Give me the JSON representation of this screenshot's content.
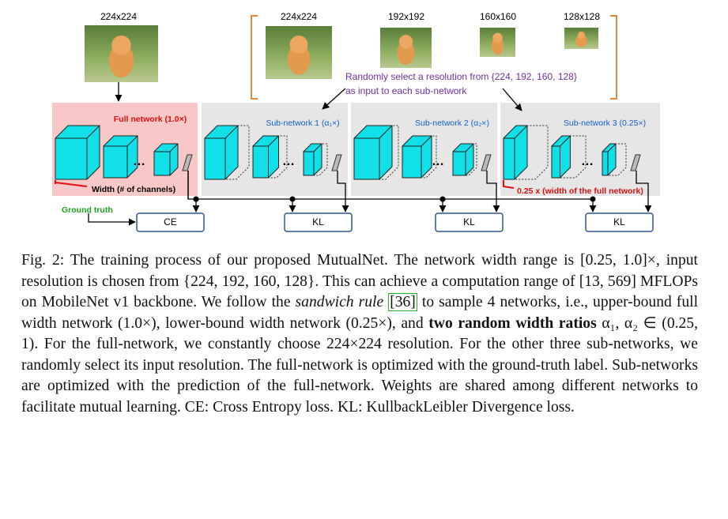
{
  "figure": {
    "full_input": "224x224",
    "resolutions": [
      "224x224",
      "192x192",
      "160x160",
      "128x128"
    ],
    "selection_note": [
      "Randomly select a resolution from {224, 192, 160, 128}",
      "as input to each sub-network"
    ],
    "networks": [
      "Full network (1.0×)",
      "Sub-network 1 (α₁×)",
      "Sub-network 2 (α₂×)",
      "Sub-network 3 (0.25×)"
    ],
    "width_note": "Width (# of channels)",
    "sub_width_note": "0.25 x (width of the full network)",
    "ground_truth": "Ground truth",
    "losses": [
      "CE",
      "KL",
      "KL",
      "KL"
    ]
  },
  "caption": {
    "label": "Fig. 2:",
    "part1": "The training process of our proposed MutualNet. The network width range is [0.25, 1.0]×, input resolution is chosen from {224, 192, 160, 128}. This can achieve a computation range of [13, 569] MFLOPs on MobileNet v1 backbone. We follow the",
    "italic": "sandwich rule",
    "citation": "[36]",
    "part2": "to sample 4 networks, i.e., upper-bound full width network (1.0×), lower-bound width network (0.25×), and",
    "bold": "two random width ratios",
    "part3": "α₁, α₂ ∈ (0.25, 1). For the full-network, we constantly choose 224×224 resolution. For the other three sub-networks, we randomly select its input resolution. The full-network is optimized with the ground-truth label. Sub-networks are optimized with the prediction of the full-network. Weights are shared among different networks to facilitate mutual learning. CE: Cross Entropy loss. KL: KullbackLeibler Divergence loss."
  }
}
